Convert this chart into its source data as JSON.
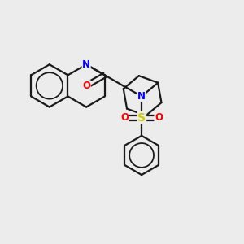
{
  "bg_color": "#ececec",
  "bond_color": "#1a1a1a",
  "N_color": "#0000ff",
  "O_color": "#ff0000",
  "S_color": "#cccc00",
  "line_width": 1.6,
  "figsize": [
    3.0,
    3.0
  ],
  "dpi": 100,
  "xlim": [
    0,
    10
  ],
  "ylim": [
    0,
    10
  ]
}
